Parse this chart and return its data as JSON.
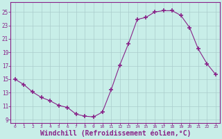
{
  "x": [
    0,
    1,
    2,
    3,
    4,
    5,
    6,
    7,
    8,
    9,
    10,
    11,
    12,
    13,
    14,
    15,
    16,
    17,
    18,
    19,
    20,
    21,
    22,
    23
  ],
  "y": [
    15.0,
    14.2,
    13.1,
    12.3,
    11.8,
    11.1,
    10.8,
    9.8,
    9.5,
    9.4,
    10.1,
    13.4,
    17.1,
    20.3,
    23.9,
    24.2,
    25.0,
    25.2,
    25.2,
    24.5,
    22.7,
    19.5,
    17.3,
    15.7
  ],
  "line_color": "#882288",
  "marker": "+",
  "markersize": 4,
  "markeredgewidth": 1.2,
  "bg_color": "#c8eee8",
  "grid_color": "#aacccc",
  "xlabel": "Windchill (Refroidissement éolien,°C)",
  "xlabel_fontsize": 7,
  "xtick_labels": [
    "0",
    "1",
    "2",
    "3",
    "4",
    "5",
    "6",
    "7",
    "8",
    "9",
    "10",
    "11",
    "12",
    "13",
    "14",
    "15",
    "16",
    "17",
    "18",
    "19",
    "20",
    "21",
    "22",
    "23"
  ],
  "ytick_labels": [
    "9",
    "11",
    "13",
    "15",
    "17",
    "19",
    "21",
    "23",
    "25"
  ],
  "yticks": [
    9,
    11,
    13,
    15,
    17,
    19,
    21,
    23,
    25
  ],
  "ylim": [
    8.5,
    26.5
  ],
  "xlim": [
    -0.5,
    23.5
  ],
  "spine_color": "#882288",
  "tick_color": "#882288",
  "label_color": "#882288"
}
